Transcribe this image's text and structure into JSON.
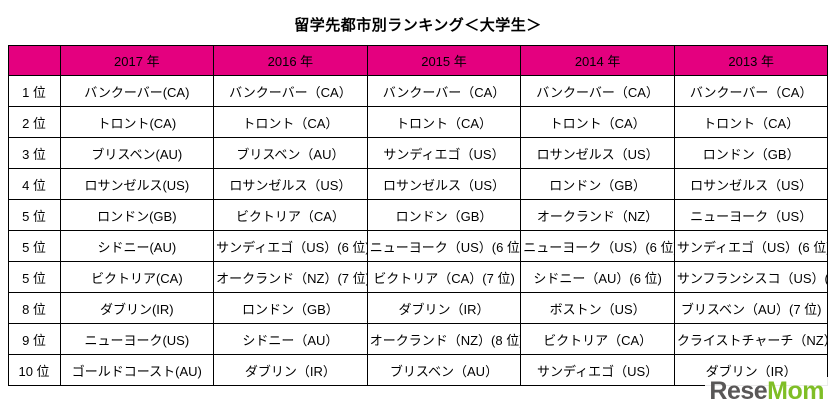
{
  "title": "留学先都市別ランキング＜大学生＞",
  "colors": {
    "header_bg": "#e4007f",
    "border": "#000000",
    "watermark_gray": "#595757",
    "watermark_green": "#7fbe26"
  },
  "watermark": {
    "part1": "Rese",
    "part2": "Mom"
  },
  "chart_data": {
    "type": "table",
    "title": "留学先都市別ランキング＜大学生＞",
    "columns": [
      "2017 年",
      "2016 年",
      "2015 年",
      "2014 年",
      "2013 年"
    ],
    "rows": [
      {
        "rank": "1 位",
        "cells": [
          "バンクーバー(CA)",
          "バンクーバー（CA）",
          "バンクーバー（CA）",
          "バンクーバー（CA）",
          "バンクーバー（CA）"
        ]
      },
      {
        "rank": "2 位",
        "cells": [
          "トロント(CA)",
          "トロント（CA）",
          "トロント（CA）",
          "トロント（CA）",
          "トロント（CA）"
        ]
      },
      {
        "rank": "3 位",
        "cells": [
          "ブリスベン(AU)",
          "ブリスベン（AU）",
          "サンディエゴ（US）",
          "ロサンゼルス（US）",
          "ロンドン（GB）"
        ]
      },
      {
        "rank": "4 位",
        "cells": [
          "ロサンゼルス(US)",
          "ロサンゼルス（US）",
          "ロサンゼルス（US）",
          "ロンドン（GB）",
          "ロサンゼルス（US）"
        ]
      },
      {
        "rank": "5 位",
        "cells": [
          "ロンドン(GB)",
          "ビクトリア（CA）",
          "ロンドン（GB）",
          "オークランド（NZ）",
          "ニューヨーク（US）"
        ]
      },
      {
        "rank": "5 位",
        "cells": [
          "シドニー(AU)",
          "サンディエゴ（US）(6 位)",
          "ニューヨーク（US）(6 位)",
          "ニューヨーク（US）(6 位)",
          "サンディエゴ（US）(6 位)"
        ]
      },
      {
        "rank": "5 位",
        "cells": [
          "ビクトリア(CA)",
          "オークランド（NZ）(7 位)",
          "ビクトリア（CA）(7 位)",
          "シドニー（AU）(6 位)",
          "サンフランシスコ（US）(7 位)"
        ]
      },
      {
        "rank": "8 位",
        "cells": [
          "ダブリン(IR)",
          "ロンドン（GB）",
          "ダブリン（IR）",
          "ボストン（US）",
          "ブリスベン（AU）(7 位)"
        ]
      },
      {
        "rank": "9 位",
        "cells": [
          "ニューヨーク(US)",
          "シドニー（AU）",
          "オークランド（NZ）(8 位)",
          "ビクトリア（CA）",
          "クライストチャーチ（NZ）"
        ]
      },
      {
        "rank": "10 位",
        "cells": [
          "ゴールドコースト(AU)",
          "ダブリン（IR）",
          "ブリスベン（AU）",
          "サンディエゴ（US）",
          "ダブリン（IR）"
        ]
      }
    ]
  }
}
